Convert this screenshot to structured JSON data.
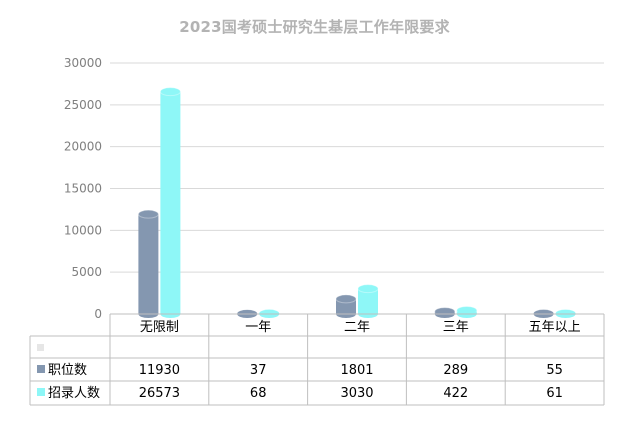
{
  "chart_data": {
    "type": "bar",
    "title": "2023国考硕士研究生基层工作年限要求",
    "categories": [
      "无限制",
      "一年",
      "二年",
      "三年",
      "五年以上"
    ],
    "series": [
      {
        "name": "职位数",
        "values": [
          11930,
          37,
          1801,
          289,
          55
        ],
        "color": "#8497b0"
      },
      {
        "name": "招录人数",
        "values": [
          26573,
          68,
          3030,
          422,
          61
        ],
        "color": "#8ef7f7"
      }
    ],
    "yticks": [
      "0",
      "5000",
      "10000",
      "15000",
      "20000",
      "25000",
      "30000"
    ],
    "ylim": [
      0,
      30000
    ],
    "grid": true,
    "data_table": true,
    "legend": "in data table"
  }
}
